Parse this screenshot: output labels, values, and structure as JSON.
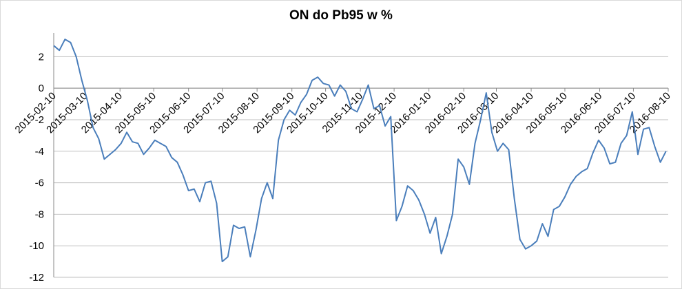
{
  "chart_data": {
    "type": "line",
    "title": "ON do Pb95 w %",
    "x": [
      "2015-02-10",
      "2015-02-15",
      "2015-02-20",
      "2015-02-25",
      "2015-03-02",
      "2015-03-07",
      "2015-03-12",
      "2015-03-17",
      "2015-03-22",
      "2015-03-27",
      "2015-04-01",
      "2015-04-06",
      "2015-04-11",
      "2015-04-16",
      "2015-04-21",
      "2015-04-26",
      "2015-05-01",
      "2015-05-06",
      "2015-05-11",
      "2015-05-16",
      "2015-05-21",
      "2015-05-26",
      "2015-05-31",
      "2015-06-05",
      "2015-06-10",
      "2015-06-15",
      "2015-06-20",
      "2015-06-25",
      "2015-06-30",
      "2015-07-05",
      "2015-07-10",
      "2015-07-15",
      "2015-07-20",
      "2015-07-25",
      "2015-07-30",
      "2015-08-04",
      "2015-08-09",
      "2015-08-14",
      "2015-08-19",
      "2015-08-24",
      "2015-08-29",
      "2015-09-03",
      "2015-09-08",
      "2015-09-13",
      "2015-09-18",
      "2015-09-23",
      "2015-09-28",
      "2015-10-03",
      "2015-10-08",
      "2015-10-13",
      "2015-10-18",
      "2015-10-23",
      "2015-10-28",
      "2015-11-02",
      "2015-11-07",
      "2015-11-12",
      "2015-11-17",
      "2015-11-22",
      "2015-11-27",
      "2015-12-02",
      "2015-12-07",
      "2015-12-12",
      "2015-12-17",
      "2015-12-22",
      "2015-12-27",
      "2016-01-01",
      "2016-01-06",
      "2016-01-11",
      "2016-01-16",
      "2016-01-21",
      "2016-01-26",
      "2016-01-31",
      "2016-02-05",
      "2016-02-10",
      "2016-02-15",
      "2016-02-20",
      "2016-02-25",
      "2016-03-01",
      "2016-03-06",
      "2016-03-11",
      "2016-03-16",
      "2016-03-21",
      "2016-03-26",
      "2016-03-31",
      "2016-04-05",
      "2016-04-10",
      "2016-04-15",
      "2016-04-20",
      "2016-04-25",
      "2016-04-30",
      "2016-05-05",
      "2016-05-10",
      "2016-05-15",
      "2016-05-20",
      "2016-05-25",
      "2016-05-30",
      "2016-06-04",
      "2016-06-09",
      "2016-06-14",
      "2016-06-19",
      "2016-06-24",
      "2016-06-29",
      "2016-07-04",
      "2016-07-09",
      "2016-07-14",
      "2016-07-19",
      "2016-07-24",
      "2016-07-29",
      "2016-08-03",
      "2016-08-08"
    ],
    "values": [
      2.7,
      2.4,
      3.1,
      2.9,
      2.0,
      0.5,
      -0.8,
      -2.5,
      -3.2,
      -4.5,
      -4.2,
      -3.9,
      -3.5,
      -2.8,
      -3.4,
      -3.5,
      -4.2,
      -3.8,
      -3.3,
      -3.5,
      -3.7,
      -4.4,
      -4.7,
      -5.5,
      -6.5,
      -6.4,
      -7.2,
      -6.0,
      -5.9,
      -7.3,
      -11.0,
      -10.7,
      -8.7,
      -8.9,
      -8.8,
      -10.7,
      -9.0,
      -7.0,
      -6.0,
      -7.0,
      -3.3,
      -2.0,
      -1.4,
      -1.7,
      -0.9,
      -0.4,
      0.5,
      0.7,
      0.3,
      0.2,
      -0.5,
      0.2,
      -0.2,
      -1.3,
      -1.5,
      -0.7,
      0.2,
      -1.3,
      -1.1,
      -2.4,
      -1.8,
      -8.4,
      -7.5,
      -6.2,
      -6.5,
      -7.1,
      -8.0,
      -9.2,
      -8.2,
      -10.5,
      -9.4,
      -8.0,
      -4.5,
      -5.0,
      -6.1,
      -3.5,
      -2.0,
      -0.3,
      -2.8,
      -4.0,
      -3.5,
      -3.9,
      -7.0,
      -9.6,
      -10.2,
      -10.0,
      -9.7,
      -8.6,
      -9.4,
      -7.7,
      -7.5,
      -6.9,
      -6.1,
      -5.6,
      -5.3,
      -5.1,
      -4.1,
      -3.3,
      -3.8,
      -4.8,
      -4.7,
      -3.5,
      -3.0,
      -1.5,
      -4.2,
      -2.6,
      -2.5,
      -3.7,
      -4.7,
      -4.0
    ],
    "color": "#4a7ebb",
    "xlim": [
      "2015-02-10",
      "2016-08-10"
    ],
    "xticks": [
      "2015-02-10",
      "2015-03-10",
      "2015-04-10",
      "2015-05-10",
      "2015-06-10",
      "2015-07-10",
      "2015-08-10",
      "2015-09-10",
      "2015-10-10",
      "2015-11-10",
      "2015-12-10",
      "2016-01-10",
      "2016-02-10",
      "2016-03-10",
      "2016-04-10",
      "2016-05-10",
      "2016-06-10",
      "2016-07-10",
      "2016-08-10"
    ],
    "ylim": [
      -12,
      3.5
    ],
    "yticks": [
      -12,
      -10,
      -8,
      -6,
      -4,
      -2,
      0,
      2
    ],
    "grid": true
  }
}
